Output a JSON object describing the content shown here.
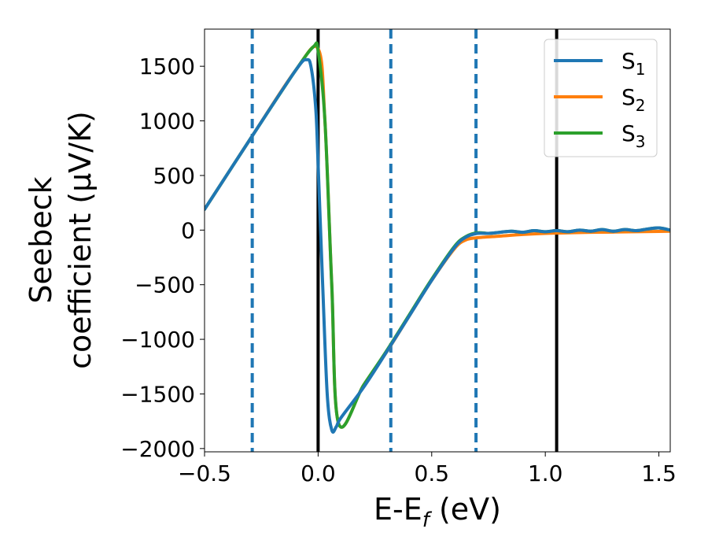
{
  "chart_data": {
    "type": "line",
    "xlabel": "E-E",
    "xlabel_sub": "f",
    "xlabel_unit": " (eV)",
    "ylabel_line1": "Seebeck",
    "ylabel_line2": "coefficient  (μV/K)",
    "xlim": [
      -0.5,
      1.55
    ],
    "ylim": [
      -2030,
      1840
    ],
    "xticks": [
      -0.5,
      0.0,
      0.5,
      1.0,
      1.5
    ],
    "xtick_labels": [
      "−0.5",
      "0.0",
      "0.5",
      "1.0",
      "1.5"
    ],
    "yticks": [
      1500,
      1000,
      500,
      0,
      -500,
      -1000,
      -1500,
      -2000
    ],
    "ytick_labels": [
      "1500",
      "1000",
      "500",
      "0",
      "−500",
      "−1000",
      "−1500",
      "−2000"
    ],
    "vlines_solid": [
      0.0,
      1.05
    ],
    "vlines_dashed": [
      -0.29,
      0.32,
      0.695
    ],
    "colors": {
      "s1": "#1f77b4",
      "s2": "#ff7f0e",
      "s3": "#2ca02c",
      "solid_vline": "#000000",
      "dashed_vline": "#1f77b4"
    },
    "legend": {
      "position": "top-right",
      "entries": [
        {
          "key": "s1",
          "label": "S",
          "sub": "1"
        },
        {
          "key": "s2",
          "label": "S",
          "sub": "2"
        },
        {
          "key": "s3",
          "label": "S",
          "sub": "3"
        }
      ]
    },
    "series": [
      {
        "key": "s2",
        "x": [
          -0.5,
          -0.3,
          -0.1,
          0.0,
          0.03,
          0.06,
          0.09,
          0.2,
          0.3,
          0.4,
          0.5,
          0.6,
          0.65,
          0.7,
          0.8,
          0.9,
          1.0,
          1.1,
          1.2,
          1.3,
          1.4,
          1.5,
          1.55
        ],
        "y": [
          190,
          830,
          1460,
          1660,
          1000,
          -500,
          -1770,
          -1420,
          -1120,
          -790,
          -460,
          -170,
          -90,
          -70,
          -55,
          -40,
          -30,
          -25,
          -20,
          -18,
          -15,
          -12,
          -10
        ]
      },
      {
        "key": "s3",
        "x": [
          -0.5,
          -0.3,
          -0.1,
          -0.02,
          0.0,
          0.03,
          0.06,
          0.09,
          0.2,
          0.3,
          0.4,
          0.5,
          0.6,
          0.65,
          0.7,
          0.75,
          0.8,
          0.85,
          0.9,
          0.95,
          1.0,
          1.05,
          1.1,
          1.15,
          1.2,
          1.25,
          1.3,
          1.35,
          1.4,
          1.45,
          1.5,
          1.55
        ],
        "y": [
          190,
          830,
          1460,
          1680,
          1640,
          1000,
          -500,
          -1770,
          -1420,
          -1110,
          -780,
          -450,
          -150,
          -60,
          -25,
          -30,
          -20,
          -10,
          -20,
          -5,
          -15,
          -5,
          -15,
          0,
          -10,
          5,
          -10,
          5,
          -5,
          10,
          20,
          0
        ]
      },
      {
        "key": "s1",
        "x": [
          -0.5,
          -0.3,
          -0.1,
          -0.05,
          -0.03,
          -0.01,
          0.0,
          0.02,
          0.04,
          0.06,
          0.08,
          0.1,
          0.2,
          0.3,
          0.4,
          0.5,
          0.6,
          0.65,
          0.7,
          0.75,
          0.8,
          0.85,
          0.9,
          0.95,
          1.0,
          1.05,
          1.1,
          1.15,
          1.2,
          1.25,
          1.3,
          1.35,
          1.4,
          1.45,
          1.5,
          1.55
        ],
        "y": [
          190,
          830,
          1460,
          1560,
          1480,
          1100,
          600,
          -500,
          -1500,
          -1830,
          -1800,
          -1720,
          -1440,
          -1120,
          -790,
          -460,
          -160,
          -65,
          -30,
          -30,
          -20,
          -10,
          -20,
          -5,
          -15,
          -5,
          -15,
          0,
          -10,
          5,
          -10,
          5,
          -5,
          10,
          20,
          0
        ]
      }
    ]
  }
}
